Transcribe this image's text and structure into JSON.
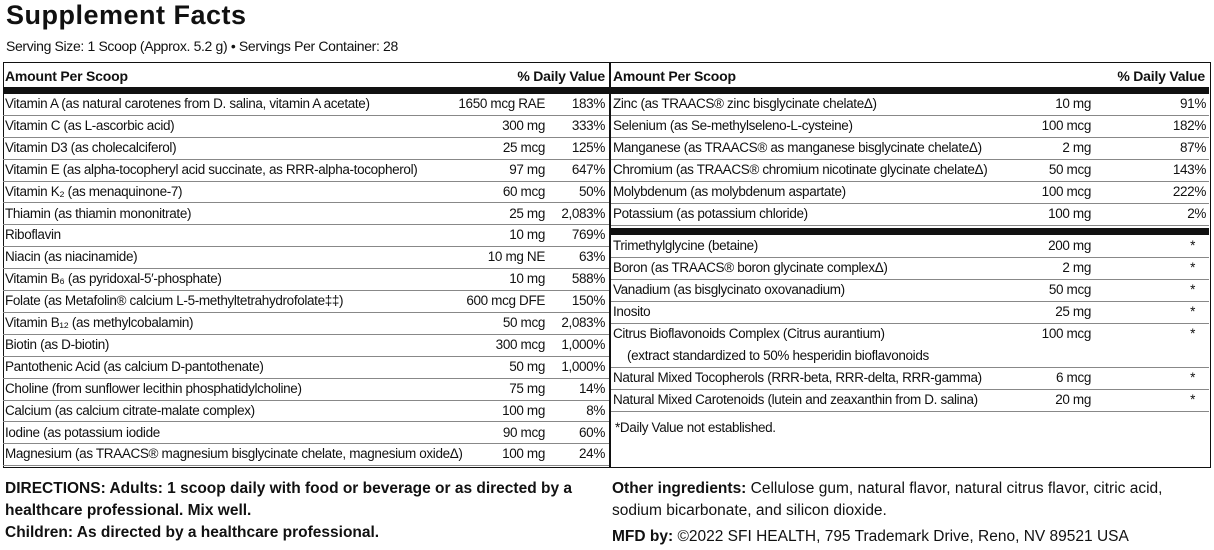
{
  "header": {
    "title": "Supplement Facts",
    "serving": "Serving Size: 1 Scoop (Approx. 5.2 g) • Servings Per Container: 28"
  },
  "left": {
    "columns": [
      "Amount Per Scoop",
      "% Daily Value"
    ],
    "rows": [
      [
        "Vitamin A (as natural carotenes from D. salina, vitamin A acetate)",
        "1650 mcg RAE",
        "183%"
      ],
      [
        "Vitamin C (as L-ascorbic acid)",
        "300 mg",
        "333%"
      ],
      [
        "Vitamin D3 (as cholecalciferol)",
        "25 mcg",
        "125%"
      ],
      [
        "Vitamin E (as alpha-tocopheryl acid succinate, as RRR-alpha-tocopherol)",
        "97 mg",
        "647%"
      ],
      [
        "Vitamin K₂ (as menaquinone-7)",
        "60 mcg",
        "50%"
      ],
      [
        "Thiamin (as thiamin mononitrate)",
        "25 mg",
        "2,083%"
      ],
      [
        "Riboflavin",
        "10 mg",
        "769%"
      ],
      [
        "Niacin (as niacinamide)",
        "10 mg NE",
        "63%"
      ],
      [
        "Vitamin B₆ (as pyridoxal-5′-phosphate)",
        "10 mg",
        "588%"
      ],
      [
        "Folate (as Metafolin® calcium L-5-methyltetrahydrofolate‡‡)",
        "600 mcg DFE",
        "150%"
      ],
      [
        "Vitamin B₁₂ (as methylcobalamin)",
        "50 mcg",
        "2,083%"
      ],
      [
        "Biotin (as D-biotin)",
        "300 mcg",
        "1,000%"
      ],
      [
        "Pantothenic Acid (as calcium D-pantothenate)",
        "50 mg",
        "1,000%"
      ],
      [
        "Choline (from sunflower lecithin phosphatidylcholine)",
        "75 mg",
        "14%"
      ],
      [
        "Calcium (as calcium citrate-malate complex)",
        "100 mg",
        "8%"
      ],
      [
        "Iodine (as potassium iodide",
        "90 mcg",
        "60%"
      ],
      [
        "Magnesium (as TRAACS® magnesium bisglycinate chelate, magnesium oxideΔ)",
        "100 mg",
        "24%"
      ]
    ]
  },
  "right": {
    "columns": [
      "Amount Per Scoop",
      "% Daily Value"
    ],
    "rows": [
      [
        "Zinc  (as TRAACS® zinc bisglycinate chelateΔ)",
        "10 mg",
        "91%"
      ],
      [
        "Selenium (as Se-methylseleno-L-cysteine)",
        "100 mcg",
        "182%"
      ],
      [
        "Manganese (as TRAACS® as manganese bisglycinate chelateΔ)",
        "2 mg",
        "87%"
      ],
      [
        "Chromium (as TRAACS® chromium nicotinate glycinate chelateΔ)",
        "50 mcg",
        "143%"
      ],
      [
        "Molybdenum (as molybdenum aspartate)",
        "100 mcg",
        "222%"
      ],
      [
        "Potassium (as potassium chloride)",
        "100 mg",
        "2%"
      ]
    ],
    "rows2": [
      [
        "Trimethylglycine (betaine)",
        "200 mg",
        "*"
      ],
      [
        "Boron (as TRAACS® boron glycinate complexΔ)",
        "2 mg",
        "*"
      ],
      [
        "Vanadium (as bisglycinato oxovanadium)",
        "50 mcg",
        "*"
      ],
      [
        "Inosito",
        "25 mg",
        "*"
      ],
      [
        "Citrus Bioflavonoids Complex (Citrus aurantium)",
        "100 mcg",
        "*",
        "(extract standardized to 50% hesperidin bioflavonoids"
      ],
      [
        "Natural Mixed Tocopherols (RRR-beta, RRR-delta, RRR-gamma)",
        "6 mcg",
        "*"
      ],
      [
        "Natural Mixed Carotenoids (lutein and zeaxanthin from D. salina)",
        "20 mg",
        "*"
      ]
    ],
    "footnote": "*Daily Value not established."
  },
  "footer": {
    "directions": "DIRECTIONS: Adults: 1 scoop daily with food or beverage or as directed by a healthcare professional. Mix well.",
    "children": "Children: As directed by a healthcare professional.",
    "other_label": "Other ingredients:",
    "other": "Cellulose gum, natural flavor, natural citrus flavor, citric acid, sodium bicarbonate, and silicon dioxide.",
    "mfd_label": "MFD by:",
    "mfd": "©2022 SFI HEALTH, 795 Trademark Drive, Reno, NV 89521 USA"
  }
}
